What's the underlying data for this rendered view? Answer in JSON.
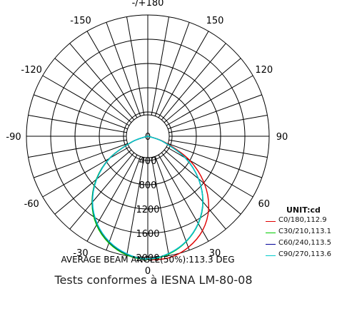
{
  "chart_data": {
    "type": "polar-line",
    "angle_labels": [
      {
        "value": 0,
        "label": "0"
      },
      {
        "value": 30,
        "label": "30"
      },
      {
        "value": 60,
        "label": "60"
      },
      {
        "value": 90,
        "label": "90"
      },
      {
        "value": 120,
        "label": "120"
      },
      {
        "value": 150,
        "label": "150"
      },
      {
        "value": 180,
        "label": "-/+180"
      },
      {
        "value": -150,
        "label": "-150"
      },
      {
        "value": -120,
        "label": "-120"
      },
      {
        "value": -90,
        "label": "-90"
      },
      {
        "value": -60,
        "label": "-60"
      },
      {
        "value": -30,
        "label": "-30"
      }
    ],
    "radial_ticks": [
      0,
      400,
      800,
      1200,
      1600,
      2000
    ],
    "radial_max": 2000,
    "unit_label": "UNIT:cd",
    "series": [
      {
        "name": "C0/180,112.9",
        "color": "#e00000",
        "angles": [
          0,
          10,
          20,
          30,
          40,
          50,
          60,
          70,
          80,
          90
        ],
        "left": [
          2030,
          1985,
          1860,
          1680,
          1420,
          1100,
          720,
          280,
          20,
          0
        ],
        "right": [
          2060,
          2035,
          1950,
          1800,
          1560,
          1220,
          800,
          320,
          30,
          0
        ]
      },
      {
        "name": "C30/210,113.1",
        "color": "#00cc00",
        "angles": [
          0,
          10,
          20,
          30,
          40,
          50,
          60,
          70,
          80,
          90
        ],
        "left": [
          2030,
          1990,
          1875,
          1690,
          1430,
          1110,
          730,
          290,
          20,
          0
        ],
        "right": [
          2020,
          1975,
          1850,
          1665,
          1415,
          1090,
          715,
          280,
          20,
          0
        ]
      },
      {
        "name": "C60/240,113.5",
        "color": "#000099",
        "angles": [
          0,
          10,
          20,
          30,
          40,
          50,
          60,
          70,
          80,
          90
        ],
        "left": [
          2025,
          1975,
          1855,
          1670,
          1420,
          1100,
          725,
          285,
          20,
          0
        ],
        "right": [
          2015,
          1965,
          1845,
          1660,
          1410,
          1090,
          715,
          280,
          20,
          0
        ]
      },
      {
        "name": "C90/270,113.6",
        "color": "#00cccc",
        "angles": [
          0,
          10,
          20,
          30,
          40,
          50,
          60,
          70,
          80,
          90
        ],
        "left": [
          2025,
          1970,
          1850,
          1665,
          1415,
          1095,
          720,
          285,
          20,
          0
        ],
        "right": [
          2020,
          1965,
          1845,
          1660,
          1410,
          1090,
          715,
          280,
          20,
          0
        ]
      }
    ],
    "annotation": "AVERAGE BEAM ANGLE(50%):113.3 DEG"
  },
  "footer_text": "Tests conformes à IESNA LM-80-08"
}
